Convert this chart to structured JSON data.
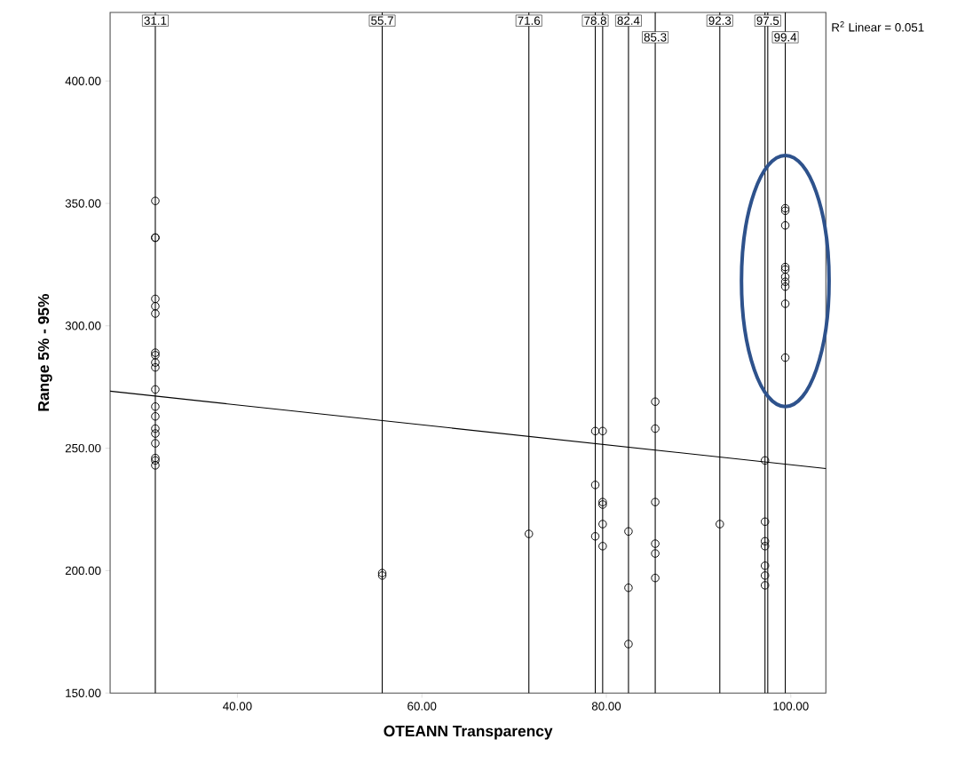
{
  "chart_data": {
    "type": "scatter",
    "xlabel": "OTEANN Transparency",
    "ylabel": "Range 5% - 95%",
    "xlim": [
      26.2,
      103.8
    ],
    "ylim": [
      150,
      428
    ],
    "xticks": [
      {
        "value": 40,
        "label": "40.00"
      },
      {
        "value": 60,
        "label": "60.00"
      },
      {
        "value": 80,
        "label": "80.00"
      },
      {
        "value": 100,
        "label": "100.00"
      }
    ],
    "yticks": [
      {
        "value": 150,
        "label": "150.00"
      },
      {
        "value": 200,
        "label": "200.00"
      },
      {
        "value": 250,
        "label": "250.00"
      },
      {
        "value": 300,
        "label": "300.00"
      },
      {
        "value": 350,
        "label": "350.00"
      },
      {
        "value": 400,
        "label": "400.00"
      }
    ],
    "series": [
      {
        "marker": "circle",
        "color": "#000000",
        "x": [
          31.1,
          31.1,
          31.1,
          31.1,
          31.1,
          31.1,
          31.1,
          31.1,
          31.1,
          31.1,
          31.1,
          31.1,
          31.1,
          31.1,
          31.1,
          31.1,
          31.1,
          31.1,
          31.1,
          55.7,
          55.7,
          71.6,
          78.8,
          78.8,
          78.8,
          79.6,
          79.6,
          79.6,
          79.6,
          79.6,
          82.4,
          82.4,
          82.4,
          85.3,
          85.3,
          85.3,
          85.3,
          85.3,
          85.3,
          92.3,
          97.2,
          97.2,
          97.2,
          97.2,
          97.2,
          97.2,
          97.2,
          99.4,
          99.4,
          99.4,
          99.4,
          99.4,
          99.4,
          99.4,
          99.4,
          99.4,
          99.4
        ],
        "values": [
          351,
          336,
          336,
          311,
          308,
          305,
          289,
          288,
          285,
          283,
          274,
          267,
          263,
          258,
          256,
          252,
          246,
          245,
          243,
          199,
          198,
          215,
          257,
          235,
          214,
          257,
          228,
          227,
          219,
          210,
          216,
          193,
          170,
          269,
          258,
          228,
          211,
          207,
          197,
          219,
          245,
          220,
          212,
          210,
          202,
          198,
          194,
          348,
          347,
          341,
          324,
          323,
          320,
          318,
          316,
          309,
          287
        ]
      },
      {
        "type": "line",
        "color": "#000000",
        "x": [
          26.2,
          103.8
        ],
        "values": [
          273.3,
          241.7
        ]
      }
    ],
    "ref_lines": [
      {
        "axis": "x",
        "value": 31.1,
        "label": "31.1"
      },
      {
        "axis": "x",
        "value": 55.7,
        "label": "55.7"
      },
      {
        "axis": "x",
        "value": 71.6,
        "label": "71.6"
      },
      {
        "axis": "x",
        "value": 78.8,
        "label": "78.8"
      },
      {
        "axis": "x",
        "value": 79.6
      },
      {
        "axis": "x",
        "value": 82.4,
        "label": "82.4"
      },
      {
        "axis": "x",
        "value": 85.3,
        "label": "85.3"
      },
      {
        "axis": "x",
        "value": 92.3,
        "label": "92.3"
      },
      {
        "axis": "x",
        "value": 97.2
      },
      {
        "axis": "x",
        "value": 97.5,
        "label": "97.5"
      },
      {
        "axis": "x",
        "value": 99.4,
        "label": "99.4"
      }
    ],
    "annotations": [
      "R$^{2}$ Linear = 0.051"
    ]
  }
}
